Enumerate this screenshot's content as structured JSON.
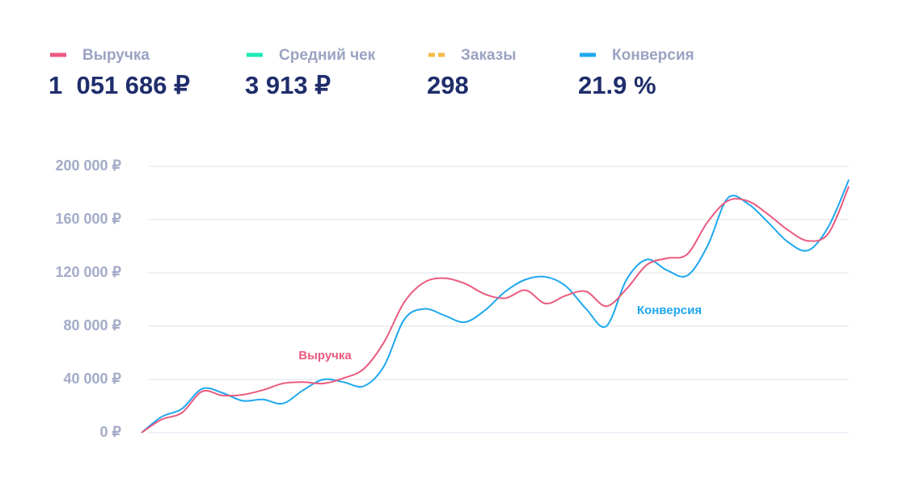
{
  "kpis": [
    {
      "name": "Выручка",
      "color": "#ea5a7e",
      "value": "1  051 686 ₽"
    },
    {
      "name": "Средний чек",
      "color": "#1de9b6",
      "value": "3 913 ₽"
    },
    {
      "name": "Заказы",
      "color": "#f8bb48",
      "style": "dashed",
      "value": "298"
    },
    {
      "name": "Конверсия",
      "color": "#1ea7ef",
      "value": "21.9 %"
    }
  ],
  "chart_data": {
    "type": "line",
    "categories": [
      null,
      null,
      null,
      null,
      null,
      null,
      null,
      null,
      null,
      null,
      null,
      null,
      null,
      null,
      null,
      null,
      null,
      null,
      null,
      null,
      null,
      null,
      null,
      null,
      null,
      null,
      null,
      null,
      null,
      null,
      null,
      null,
      null,
      null,
      null,
      null
    ],
    "series": [
      {
        "name": "Выручка",
        "color": "#ea5a7e",
        "values": [
          0,
          10000,
          15000,
          31000,
          28000,
          28500,
          32000,
          37000,
          38000,
          37000,
          41000,
          48000,
          68000,
          98000,
          113000,
          116000,
          112000,
          104000,
          101000,
          107000,
          97000,
          103000,
          106000,
          95000,
          108000,
          126000,
          131000,
          134000,
          158000,
          174000,
          174000,
          164000,
          152000,
          144000,
          150000,
          185000
        ]
      },
      {
        "name": "Конверсия",
        "color": "#1ea7ef",
        "values": [
          0,
          12000,
          18000,
          33000,
          30000,
          24000,
          25000,
          22000,
          32000,
          40000,
          38000,
          35000,
          50000,
          85000,
          93000,
          88000,
          83000,
          92000,
          106000,
          115000,
          117000,
          110000,
          93000,
          80000,
          115000,
          130000,
          122000,
          118000,
          140000,
          176000,
          172000,
          158000,
          143000,
          137000,
          155000,
          190000
        ]
      }
    ],
    "ylim": [
      0,
      200000
    ],
    "yticks": [
      {
        "value": 0,
        "label": "0 ₽"
      },
      {
        "value": 40000,
        "label": "40 000 ₽"
      },
      {
        "value": 80000,
        "label": "80 000 ₽"
      },
      {
        "value": 120000,
        "label": "120 000 ₽"
      },
      {
        "value": 160000,
        "label": "160 000 ₽"
      },
      {
        "value": 200000,
        "label": "200 000 ₽"
      }
    ],
    "grid": true
  }
}
